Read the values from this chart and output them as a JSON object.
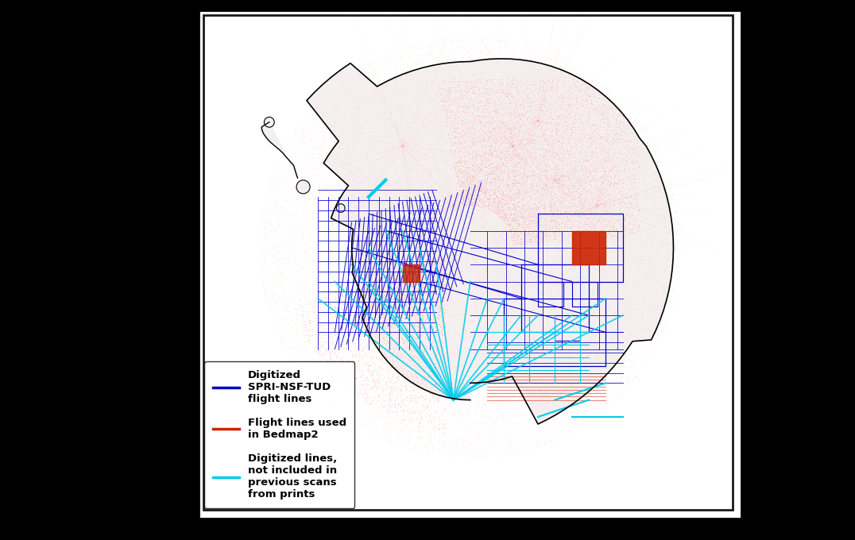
{
  "fig_bg": "#000000",
  "map_bg": "#ffffff",
  "border_color": "#1a1a1a",
  "coastline_color": "#000000",
  "blue_line_color": "#0000cc",
  "cyan_line_color": "#00ccee",
  "red_dot_color": "#ff8888",
  "red_solid_color": "#cc2200",
  "legend_labels": [
    "Digitized\nSPRI-NSF-TUD\nflight lines",
    "Flight lines used\nin Bedmap2",
    "Digitized lines,\nnot included in\nprevious scans\nfrom prints"
  ],
  "legend_colors": [
    "#0000cc",
    "#cc2200",
    "#00ccee"
  ]
}
